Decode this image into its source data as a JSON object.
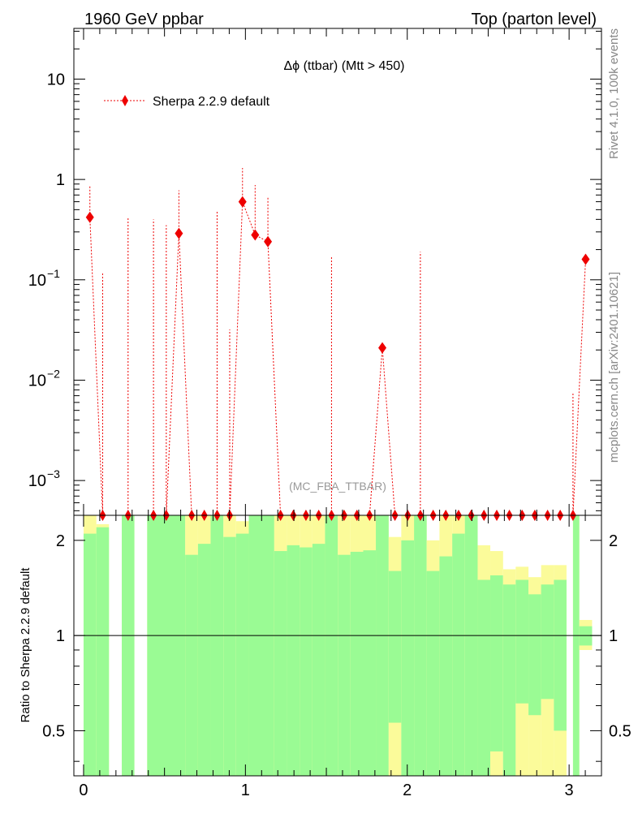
{
  "header": {
    "left_title": "1960 GeV ppbar",
    "right_title": "Top (parton level)"
  },
  "side_labels": {
    "version": "Rivet 4.1.0,  100k events",
    "source": "mcplots.cern.ch [arXiv:2401.10621]"
  },
  "colors": {
    "series": "#ee0000",
    "band_inner": "#9afb94",
    "band_outer": "#fbfb9a",
    "axis": "#000000",
    "side_text": "#888888"
  },
  "chart_data": {
    "type": "scatter",
    "title": "Δϕ (ttbar) (Mtt > 450)",
    "analysis_label": "(MC_FBA_TTBAR)",
    "legend": [
      {
        "label": "Sherpa 2.2.9 default",
        "marker": "diamond",
        "position": "top-left"
      }
    ],
    "x_range": [
      -0.06,
      3.2
    ],
    "x_ticks": [
      "0",
      "1",
      "2",
      "3"
    ],
    "main": {
      "yscale": "log",
      "ylim": [
        0.00045,
        32
      ],
      "y_ticks": [
        {
          "value": 10,
          "base": "10",
          "exp": ""
        },
        {
          "value": 1,
          "base": "1",
          "exp": ""
        },
        {
          "value": 0.1,
          "base": "10",
          "exp": "−1"
        },
        {
          "value": 0.01,
          "base": "10",
          "exp": "−2"
        },
        {
          "value": 0.001,
          "base": "10",
          "exp": "−3"
        }
      ],
      "series": [
        {
          "name": "Sherpa 2.2.9 default",
          "points": [
            {
              "x": 0.039,
              "y": 0.42,
              "err_hi": 0.88
            },
            {
              "x": 0.118,
              "y": 0.0004,
              "err_hi": 0.12
            },
            {
              "x": 0.275,
              "y": 0.0004,
              "err_hi": 0.42
            },
            {
              "x": 0.432,
              "y": 0.0004,
              "err_hi": 0.4
            },
            {
              "x": 0.511,
              "y": 0.0004,
              "err_hi": 0.35
            },
            {
              "x": 0.589,
              "y": 0.29,
              "err_hi": 0.78
            },
            {
              "x": 0.668,
              "y": 0.0004
            },
            {
              "x": 0.746,
              "y": 0.0004
            },
            {
              "x": 0.825,
              "y": 0.0004,
              "err_hi": 0.48
            },
            {
              "x": 0.903,
              "y": 0.0004,
              "err_hi": 0.032
            },
            {
              "x": 0.982,
              "y": 0.6,
              "err_hi": 1.3
            },
            {
              "x": 1.06,
              "y": 0.28,
              "err_hi": 0.88
            },
            {
              "x": 1.139,
              "y": 0.24,
              "err_hi": 0.68
            },
            {
              "x": 1.217,
              "y": 0.0004
            },
            {
              "x": 1.296,
              "y": 0.0004
            },
            {
              "x": 1.374,
              "y": 0.0004
            },
            {
              "x": 1.453,
              "y": 0.0004
            },
            {
              "x": 1.532,
              "y": 0.0004,
              "err_hi": 0.17
            },
            {
              "x": 1.61,
              "y": 0.0004
            },
            {
              "x": 1.689,
              "y": 0.0004
            },
            {
              "x": 1.767,
              "y": 0.0004
            },
            {
              "x": 1.846,
              "y": 0.021,
              "err_hi": 0.021
            },
            {
              "x": 1.924,
              "y": 0.0004
            },
            {
              "x": 2.003,
              "y": 0.0004
            },
            {
              "x": 2.081,
              "y": 0.0004,
              "err_hi": 0.19
            },
            {
              "x": 2.16,
              "y": 0.0004
            },
            {
              "x": 2.238,
              "y": 0.0004
            },
            {
              "x": 2.317,
              "y": 0.0004
            },
            {
              "x": 2.395,
              "y": 0.0004
            },
            {
              "x": 2.474,
              "y": 0.0004
            },
            {
              "x": 2.553,
              "y": 0.0004
            },
            {
              "x": 2.631,
              "y": 0.0004
            },
            {
              "x": 2.71,
              "y": 0.0004
            },
            {
              "x": 2.788,
              "y": 0.0004
            },
            {
              "x": 2.867,
              "y": 0.0004
            },
            {
              "x": 2.945,
              "y": 0.0004
            },
            {
              "x": 3.024,
              "y": 0.0004,
              "err_hi": 0.0075
            },
            {
              "x": 3.102,
              "y": 0.16
            }
          ]
        }
      ]
    },
    "ratio": {
      "ylabel": "Ratio to Sherpa 2.2.9 default",
      "yscale": "log",
      "ylim": [
        0.36,
        2.4
      ],
      "y_ticks": [
        {
          "value": 2,
          "label": "2"
        },
        {
          "value": 1,
          "label": "1"
        },
        {
          "value": 0.5,
          "label": "0.5"
        }
      ],
      "reference": 1,
      "bands": [
        {
          "x0": 0.0,
          "x1": 0.079,
          "in_lo": 0.36,
          "in_hi": 2.1,
          "out_lo": 0.36,
          "out_hi": 2.4
        },
        {
          "x0": 0.079,
          "x1": 0.157,
          "in_lo": 0.36,
          "in_hi": 2.2,
          "out_lo": 0.36,
          "out_hi": 2.25
        },
        {
          "x0": 0.236,
          "x1": 0.314,
          "in_lo": 0.36,
          "in_hi": 2.4,
          "out_lo": 0.36,
          "out_hi": 2.4
        },
        {
          "x0": 0.393,
          "x1": 0.628,
          "in_lo": 0.36,
          "in_hi": 2.4,
          "out_lo": 0.36,
          "out_hi": 2.4
        },
        {
          "x0": 0.628,
          "x1": 0.707,
          "in_lo": 0.36,
          "in_hi": 1.8,
          "out_lo": 0.36,
          "out_hi": 2.4
        },
        {
          "x0": 0.707,
          "x1": 0.785,
          "in_lo": 0.36,
          "in_hi": 1.95,
          "out_lo": 0.36,
          "out_hi": 2.4
        },
        {
          "x0": 0.785,
          "x1": 0.864,
          "in_lo": 0.36,
          "in_hi": 2.4,
          "out_lo": 0.36,
          "out_hi": 2.4
        },
        {
          "x0": 0.864,
          "x1": 0.942,
          "in_lo": 0.36,
          "in_hi": 2.05,
          "out_lo": 0.36,
          "out_hi": 2.4
        },
        {
          "x0": 0.942,
          "x1": 1.021,
          "in_lo": 0.36,
          "in_hi": 2.1,
          "out_lo": 0.36,
          "out_hi": 2.3
        },
        {
          "x0": 1.021,
          "x1": 1.178,
          "in_lo": 0.36,
          "in_hi": 2.4,
          "out_lo": 0.36,
          "out_hi": 2.4
        },
        {
          "x0": 1.178,
          "x1": 1.257,
          "in_lo": 0.36,
          "in_hi": 1.85,
          "out_lo": 0.36,
          "out_hi": 2.4
        },
        {
          "x0": 1.257,
          "x1": 1.335,
          "in_lo": 0.36,
          "in_hi": 1.93,
          "out_lo": 0.36,
          "out_hi": 2.4
        },
        {
          "x0": 1.335,
          "x1": 1.414,
          "in_lo": 0.36,
          "in_hi": 1.9,
          "out_lo": 0.36,
          "out_hi": 2.4
        },
        {
          "x0": 1.414,
          "x1": 1.492,
          "in_lo": 0.36,
          "in_hi": 1.95,
          "out_lo": 0.36,
          "out_hi": 2.4
        },
        {
          "x0": 1.492,
          "x1": 1.571,
          "in_lo": 0.36,
          "in_hi": 2.4,
          "out_lo": 0.36,
          "out_hi": 2.4
        },
        {
          "x0": 1.571,
          "x1": 1.649,
          "in_lo": 0.36,
          "in_hi": 1.8,
          "out_lo": 0.36,
          "out_hi": 2.4
        },
        {
          "x0": 1.649,
          "x1": 1.728,
          "in_lo": 0.36,
          "in_hi": 1.84,
          "out_lo": 0.36,
          "out_hi": 2.4
        },
        {
          "x0": 1.728,
          "x1": 1.806,
          "in_lo": 0.36,
          "in_hi": 1.86,
          "out_lo": 0.36,
          "out_hi": 2.4
        },
        {
          "x0": 1.806,
          "x1": 1.885,
          "in_lo": 0.36,
          "in_hi": 2.4,
          "out_lo": 0.36,
          "out_hi": 2.4
        },
        {
          "x0": 1.885,
          "x1": 1.963,
          "in_lo": 0.53,
          "in_hi": 1.6,
          "out_lo": 0.36,
          "out_hi": 2.05
        },
        {
          "x0": 1.963,
          "x1": 2.042,
          "in_lo": 0.36,
          "in_hi": 2.0,
          "out_lo": 0.36,
          "out_hi": 2.4
        },
        {
          "x0": 2.042,
          "x1": 2.12,
          "in_lo": 0.36,
          "in_hi": 2.4,
          "out_lo": 0.36,
          "out_hi": 2.4
        },
        {
          "x0": 2.12,
          "x1": 2.199,
          "in_lo": 0.36,
          "in_hi": 1.6,
          "out_lo": 0.36,
          "out_hi": 2.0
        },
        {
          "x0": 2.199,
          "x1": 2.278,
          "in_lo": 0.36,
          "in_hi": 1.78,
          "out_lo": 0.36,
          "out_hi": 2.4
        },
        {
          "x0": 2.278,
          "x1": 2.356,
          "in_lo": 0.36,
          "in_hi": 2.1,
          "out_lo": 0.36,
          "out_hi": 2.4
        },
        {
          "x0": 2.356,
          "x1": 2.435,
          "in_lo": 0.36,
          "in_hi": 2.4,
          "out_lo": 0.36,
          "out_hi": 2.4
        },
        {
          "x0": 2.435,
          "x1": 2.513,
          "in_lo": 0.36,
          "in_hi": 1.5,
          "out_lo": 0.36,
          "out_hi": 1.93
        },
        {
          "x0": 2.513,
          "x1": 2.592,
          "in_lo": 0.43,
          "in_hi": 1.55,
          "out_lo": 0.36,
          "out_hi": 1.85
        },
        {
          "x0": 2.592,
          "x1": 2.67,
          "in_lo": 0.36,
          "in_hi": 1.45,
          "out_lo": 0.36,
          "out_hi": 1.62
        },
        {
          "x0": 2.67,
          "x1": 2.749,
          "in_lo": 0.61,
          "in_hi": 1.5,
          "out_lo": 0.36,
          "out_hi": 1.65
        },
        {
          "x0": 2.749,
          "x1": 2.827,
          "in_lo": 0.56,
          "in_hi": 1.35,
          "out_lo": 0.36,
          "out_hi": 1.53
        },
        {
          "x0": 2.827,
          "x1": 2.906,
          "in_lo": 0.63,
          "in_hi": 1.45,
          "out_lo": 0.36,
          "out_hi": 1.67
        },
        {
          "x0": 2.906,
          "x1": 2.984,
          "in_lo": 0.5,
          "in_hi": 1.5,
          "out_lo": 0.36,
          "out_hi": 1.67
        },
        {
          "x0": 3.024,
          "x1": 3.063,
          "in_lo": 0.36,
          "in_hi": 2.4,
          "out_lo": 0.36,
          "out_hi": 2.4
        },
        {
          "x0": 3.063,
          "x1": 3.142,
          "in_lo": 0.93,
          "in_hi": 1.07,
          "out_lo": 0.9,
          "out_hi": 1.12
        }
      ]
    }
  }
}
